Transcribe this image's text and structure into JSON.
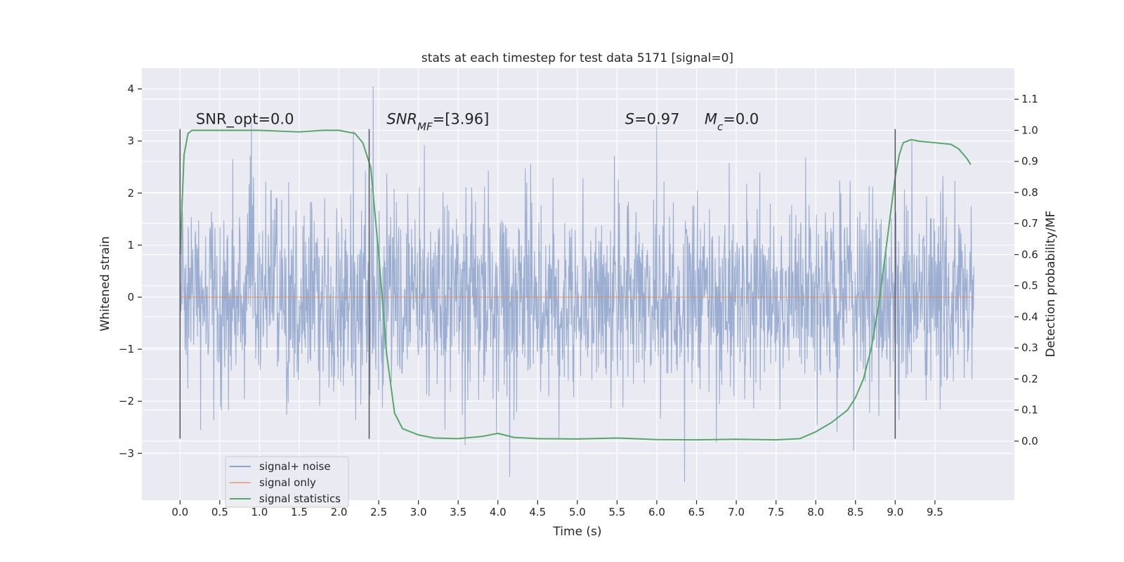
{
  "chart_data": {
    "type": "line",
    "title": "stats at each timestep for test data 5171 [signal=0]",
    "xlabel": "Time (s)",
    "ylabel": "Whitened strain",
    "y2label": "Detection probability/MF",
    "xlim": [
      -0.48,
      10.5
    ],
    "ylim": [
      -3.9,
      4.4
    ],
    "y2lim": [
      -0.19,
      1.2
    ],
    "x_ticks": [
      0.0,
      0.5,
      1.0,
      1.5,
      2.0,
      2.5,
      3.0,
      3.5,
      4.0,
      4.5,
      5.0,
      5.5,
      6.0,
      6.5,
      7.0,
      7.5,
      8.0,
      8.5,
      9.0,
      9.5
    ],
    "x_tick_labels": [
      "0.0",
      "0.5",
      "1.0",
      "1.5",
      "2.0",
      "2.5",
      "3.0",
      "3.5",
      "4.0",
      "4.5",
      "5.0",
      "5.5",
      "6.0",
      "6.5",
      "7.0",
      "7.5",
      "8.0",
      "8.5",
      "9.0",
      "9.5"
    ],
    "y_ticks": [
      -3,
      -2,
      -1,
      0,
      1,
      2,
      3,
      4
    ],
    "y_tick_labels": [
      "−3",
      "−2",
      "−1",
      "0",
      "1",
      "2",
      "3",
      "4"
    ],
    "y2_ticks": [
      0.0,
      0.1,
      0.2,
      0.3,
      0.4,
      0.5,
      0.6,
      0.7,
      0.8,
      0.9,
      1.0,
      1.1
    ],
    "y2_tick_labels": [
      "0.0",
      "0.1",
      "0.2",
      "0.3",
      "0.4",
      "0.5",
      "0.6",
      "0.7",
      "0.8",
      "0.9",
      "1.0",
      "1.1"
    ],
    "grid": true,
    "legend_position": "lower-left",
    "series": [
      {
        "name": "signal+ noise",
        "axis": "left",
        "color": "#4c72b0",
        "x_range": [
          0.0,
          9.99
        ],
        "sample_count": 2048,
        "typical_band": [
          -1.5,
          1.5
        ],
        "peaks": [
          [
            0.9,
            3.35
          ],
          [
            2.18,
            3.2
          ],
          [
            2.43,
            4.05
          ],
          [
            6.0,
            3.3
          ],
          [
            6.35,
            -3.55
          ],
          [
            4.15,
            -3.45
          ]
        ]
      },
      {
        "name": "signal only",
        "axis": "left",
        "color": "#dd8452",
        "x": [
          0.0,
          9.99
        ],
        "y": [
          0.0,
          0.0
        ]
      },
      {
        "name": "signal statistics",
        "axis": "right",
        "color": "#55a868",
        "x": [
          0.0,
          0.05,
          0.1,
          0.15,
          0.2,
          0.3,
          0.5,
          1.0,
          1.5,
          1.8,
          2.0,
          2.2,
          2.3,
          2.4,
          2.5,
          2.6,
          2.7,
          2.8,
          2.9,
          3.0,
          3.2,
          3.5,
          3.8,
          4.0,
          4.2,
          4.5,
          5.0,
          5.5,
          6.0,
          6.5,
          7.0,
          7.5,
          7.8,
          8.0,
          8.2,
          8.4,
          8.5,
          8.6,
          8.7,
          8.8,
          8.9,
          9.0,
          9.05,
          9.1,
          9.2,
          9.3,
          9.5,
          9.7,
          9.8,
          9.9,
          9.95
        ],
        "y": [
          0.6,
          0.92,
          0.99,
          1.0,
          1.0,
          1.0,
          1.0,
          1.0,
          0.995,
          1.0,
          1.0,
          0.99,
          0.96,
          0.88,
          0.6,
          0.28,
          0.09,
          0.04,
          0.03,
          0.02,
          0.01,
          0.008,
          0.015,
          0.025,
          0.012,
          0.008,
          0.007,
          0.01,
          0.005,
          0.004,
          0.006,
          0.004,
          0.008,
          0.03,
          0.06,
          0.1,
          0.14,
          0.2,
          0.3,
          0.45,
          0.65,
          0.85,
          0.92,
          0.96,
          0.97,
          0.965,
          0.96,
          0.955,
          0.94,
          0.91,
          0.89
        ]
      }
    ],
    "vlines": [
      {
        "x": 0.0,
        "ymin": -2.72,
        "ymax": 3.23
      },
      {
        "x": 2.38,
        "ymin": -2.72,
        "ymax": 3.23
      },
      {
        "x": 9.0,
        "ymin": -2.72,
        "ymax": 3.23
      }
    ],
    "annotations": [
      {
        "x": 0.2,
        "y": 3.33,
        "parts": [
          {
            "t": "SNR_opt=0.0"
          }
        ]
      },
      {
        "x": 2.6,
        "y": 3.33,
        "parts": [
          {
            "t": "SNR",
            "i": true
          },
          {
            "t": "MF",
            "i": true,
            "sub": true
          },
          {
            "t": "=[3.96]"
          }
        ]
      },
      {
        "x": 5.6,
        "y": 3.33,
        "parts": [
          {
            "t": "S",
            "i": true
          },
          {
            "t": "=0.97"
          }
        ]
      },
      {
        "x": 6.6,
        "y": 3.33,
        "parts": [
          {
            "t": "M",
            "i": true
          },
          {
            "t": "c",
            "i": true,
            "sub": true
          },
          {
            "t": "=0.0"
          }
        ]
      }
    ]
  }
}
